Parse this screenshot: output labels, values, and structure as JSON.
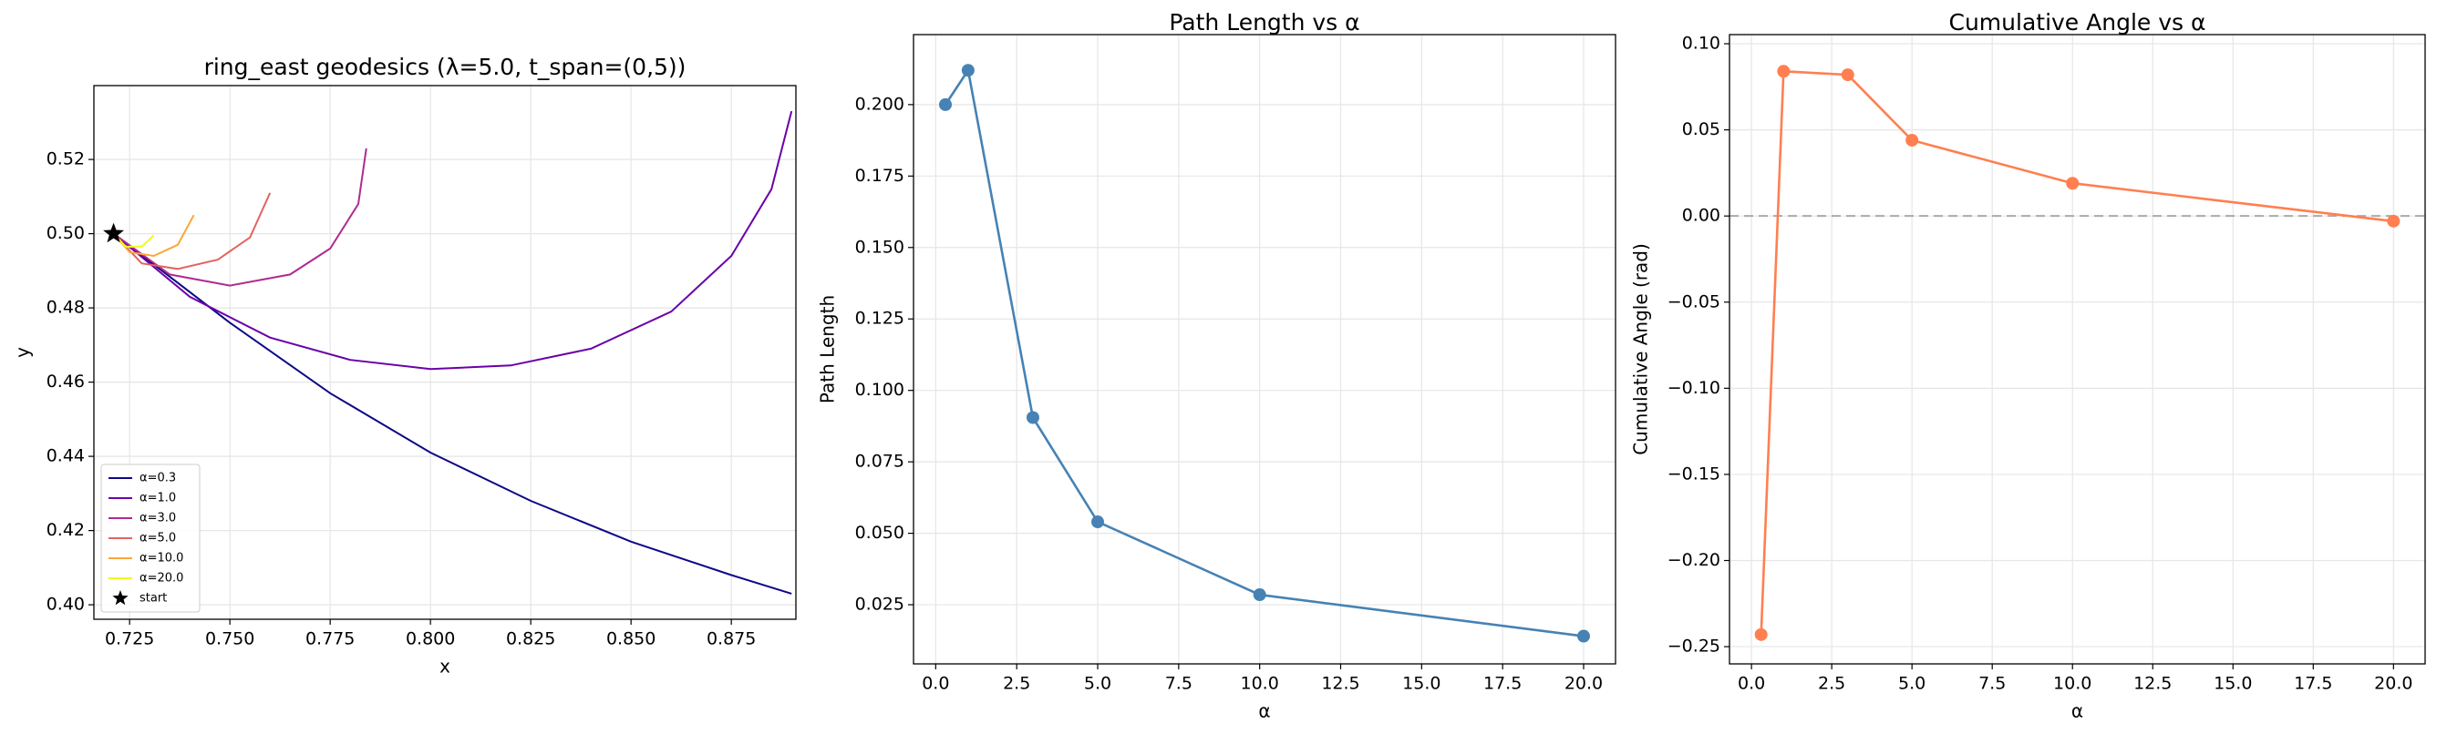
{
  "chart_data": [
    {
      "type": "line",
      "title": "ring_east geodesics (λ=5.0, t_span=(0,5))",
      "xlabel": "x",
      "ylabel": "y",
      "xlim": [
        0.7161,
        0.8911
      ],
      "ylim": [
        0.3961,
        0.5399
      ],
      "xticks": [
        0.725,
        {
          "value": 0.75,
          "label": "0.750"
        },
        0.775,
        {
          "value": 0.8,
          "label": "0.800"
        },
        0.825,
        {
          "value": 0.85,
          "label": "0.850"
        },
        0.875
      ],
      "yticks": [
        {
          "value": 0.4,
          "label": "0.40"
        },
        0.42,
        0.44,
        0.46,
        0.48,
        {
          "value": 0.5,
          "label": "0.50"
        },
        0.52
      ],
      "grid": true,
      "legend": "lower left",
      "series": [
        {
          "name": "α=0.3",
          "color": "#0d0887",
          "x": [
            0.721,
            0.75,
            0.775,
            0.8,
            0.825,
            0.85,
            0.875,
            0.89
          ],
          "values": [
            0.5,
            0.476,
            0.457,
            0.441,
            0.428,
            0.417,
            0.408,
            0.403
          ]
        },
        {
          "name": "α=1.0",
          "color": "#6a00a8",
          "x": [
            0.721,
            0.74,
            0.76,
            0.78,
            0.8,
            0.82,
            0.84,
            0.86,
            0.875,
            0.885,
            0.89
          ],
          "values": [
            0.5,
            0.483,
            0.472,
            0.466,
            0.4635,
            0.4645,
            0.469,
            0.479,
            0.494,
            0.512,
            0.533
          ]
        },
        {
          "name": "α=3.0",
          "color": "#b12a90",
          "x": [
            0.721,
            0.735,
            0.75,
            0.765,
            0.775,
            0.782,
            0.784
          ],
          "values": [
            0.5,
            0.489,
            0.486,
            0.489,
            0.496,
            0.508,
            0.523
          ]
        },
        {
          "name": "α=5.0",
          "color": "#e16462",
          "x": [
            0.721,
            0.728,
            0.737,
            0.747,
            0.755,
            0.76
          ],
          "values": [
            0.5,
            0.492,
            0.4905,
            0.493,
            0.499,
            0.511
          ]
        },
        {
          "name": "α=10.0",
          "color": "#fca636",
          "x": [
            0.721,
            0.725,
            0.731,
            0.737,
            0.741
          ],
          "values": [
            0.5,
            0.495,
            0.494,
            0.497,
            0.505
          ]
        },
        {
          "name": "α=20.0",
          "color": "#f0f921",
          "x": [
            0.721,
            0.724,
            0.728,
            0.731
          ],
          "values": [
            0.5,
            0.4965,
            0.4965,
            0.4995
          ]
        }
      ],
      "start": {
        "name": "start",
        "x": 0.721,
        "y": 0.5,
        "color": "#000000"
      }
    },
    {
      "type": "line",
      "title": "Path Length vs α",
      "xlabel": "α",
      "ylabel": "Path Length",
      "xlim": [
        -0.685,
        20.985
      ],
      "ylim": [
        0.0043,
        0.2245
      ],
      "xticks": [
        {
          "value": 0,
          "label": "0.0"
        },
        2.5,
        {
          "value": 5,
          "label": "5.0"
        },
        7.5,
        {
          "value": 10,
          "label": "10.0"
        },
        12.5,
        {
          "value": 15,
          "label": "15.0"
        },
        17.5,
        {
          "value": 20,
          "label": "20.0"
        }
      ],
      "yticks": [
        0.025,
        {
          "value": 0.05,
          "label": "0.050"
        },
        0.075,
        {
          "value": 0.1,
          "label": "0.100"
        },
        0.125,
        {
          "value": 0.15,
          "label": "0.150"
        },
        0.175,
        {
          "value": 0.2,
          "label": "0.200"
        }
      ],
      "grid": true,
      "marker": "o",
      "color": "#4682b4",
      "x": [
        0.3,
        1,
        3,
        5,
        10,
        20
      ],
      "values": [
        0.2,
        0.212,
        0.0905,
        0.054,
        0.0285,
        0.014
      ]
    },
    {
      "type": "line",
      "title": "Cumulative Angle vs α",
      "xlabel": "α",
      "ylabel": "Cumulative Angle (rad)",
      "xlim": [
        -0.685,
        20.985
      ],
      "ylim": [
        -0.26,
        0.1053
      ],
      "xticks": [
        {
          "value": 0,
          "label": "0.0"
        },
        2.5,
        {
          "value": 5,
          "label": "5.0"
        },
        7.5,
        {
          "value": 10,
          "label": "10.0"
        },
        12.5,
        {
          "value": 15,
          "label": "15.0"
        },
        17.5,
        {
          "value": 20,
          "label": "20.0"
        }
      ],
      "yticks": [
        {
          "value": -0.25,
          "label": "−0.25"
        },
        {
          "value": -0.2,
          "label": "−0.20"
        },
        {
          "value": -0.15,
          "label": "−0.15"
        },
        {
          "value": -0.1,
          "label": "−0.10"
        },
        {
          "value": -0.05,
          "label": "−0.05"
        },
        {
          "value": 0,
          "label": "0.00"
        },
        0.05,
        {
          "value": 0.1,
          "label": "0.10"
        }
      ],
      "grid": true,
      "marker": "o",
      "color": "#ff7f50",
      "hline": {
        "y": 0,
        "color": "#aaaaaa",
        "style": "dashed"
      },
      "x": [
        0.3,
        1,
        3,
        5,
        10,
        20
      ],
      "values": [
        -0.243,
        0.084,
        0.082,
        0.044,
        0.019,
        -0.003
      ]
    }
  ]
}
